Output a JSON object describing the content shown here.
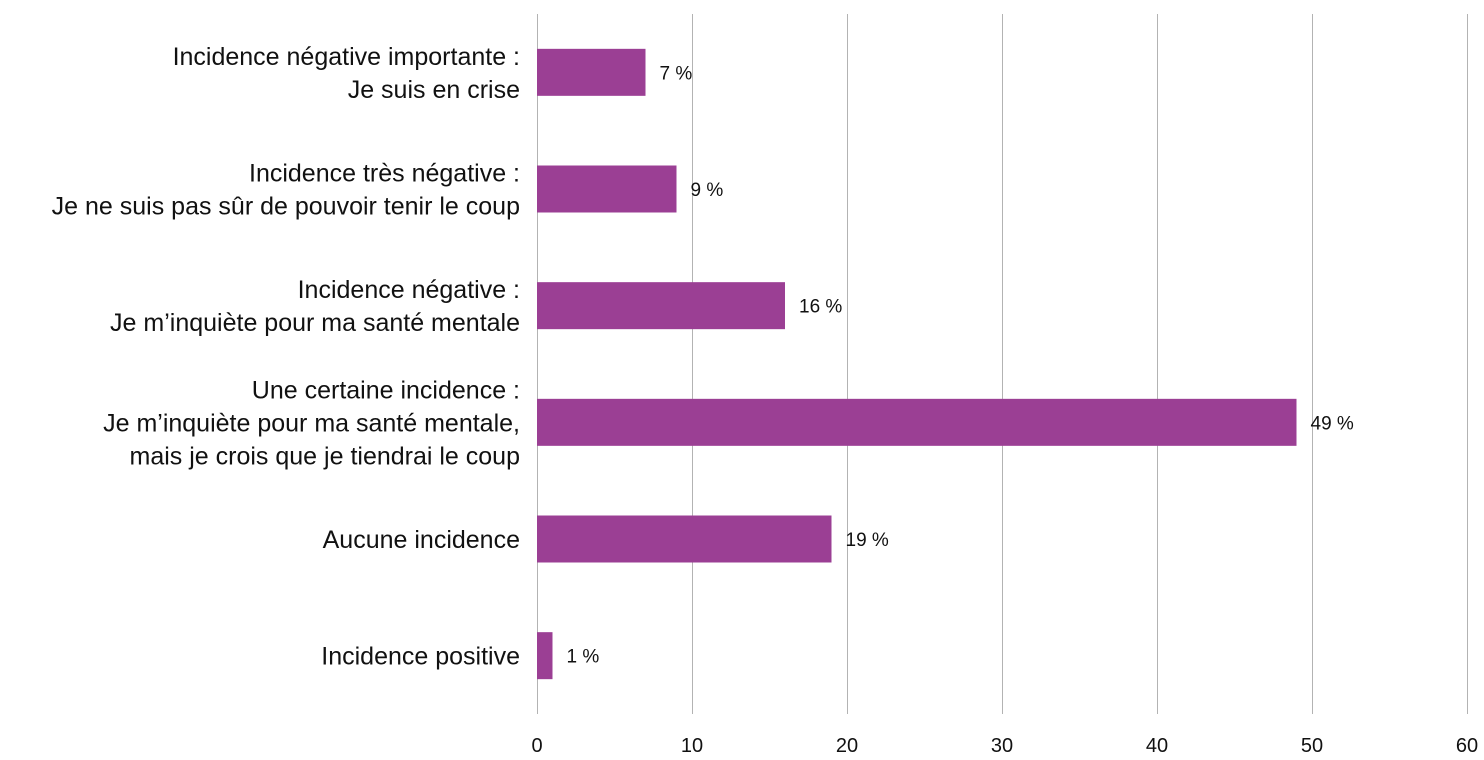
{
  "chart_data": {
    "type": "bar",
    "orientation": "horizontal",
    "categories": [
      [
        "Incidence négative importante :",
        "Je suis en crise"
      ],
      [
        "Incidence très négative :",
        "Je ne suis pas sûr de pouvoir tenir le coup"
      ],
      [
        "Incidence négative :",
        "Je m’inquiète pour ma santé mentale"
      ],
      [
        "Une certaine incidence :",
        "Je m’inquiète pour ma santé mentale,",
        "mais je crois que je tiendrai le coup"
      ],
      [
        "Aucune incidence"
      ],
      [
        "Incidence positive"
      ]
    ],
    "values": [
      7,
      9,
      16,
      49,
      19,
      1
    ],
    "data_labels": [
      "7 %",
      "9 %",
      "16 %",
      "49 %",
      "19 %",
      "1 %"
    ],
    "x_ticks": [
      "0",
      "10",
      "20",
      "30",
      "40",
      "50",
      "60"
    ],
    "xlim": [
      0,
      60
    ],
    "grid": "vertical",
    "title": "",
    "xlabel": "",
    "ylabel": "",
    "bar_color": "#9b3f94",
    "grid_color": "#b3b3b3",
    "text_color": "#111111"
  }
}
